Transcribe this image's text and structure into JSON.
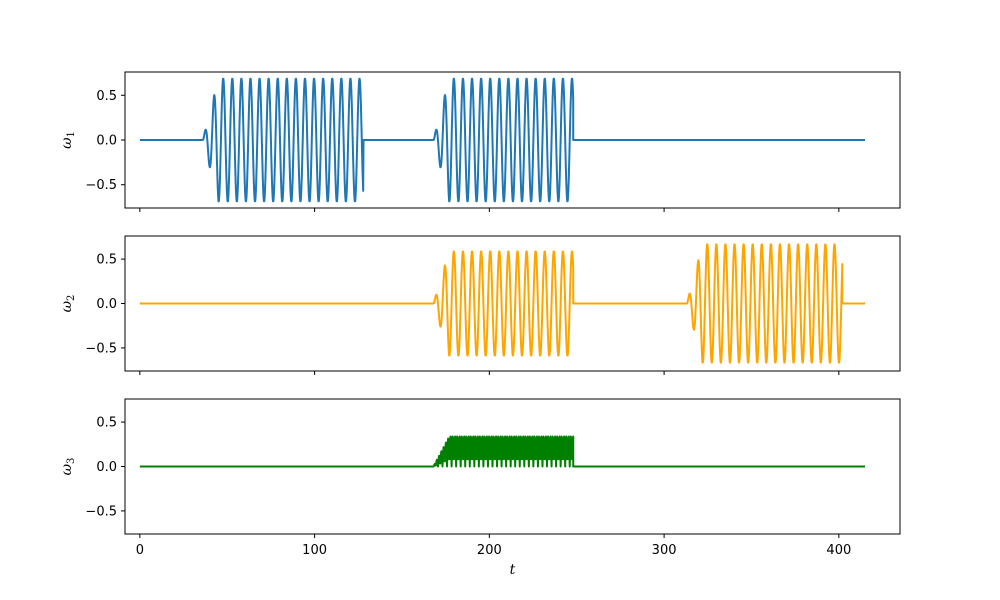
{
  "chart_data": [
    {
      "type": "line",
      "ylabel": "ω",
      "ylabel_sub": "1",
      "color": "#1f77b4",
      "xlim": [
        -8.5,
        435
      ],
      "ylim": [
        -0.76,
        0.76
      ],
      "yticks": [
        0.5,
        0.0,
        -0.5
      ],
      "ytick_labels": [
        "0.5",
        "0.0",
        "−0.5"
      ],
      "show_xtick_labels": false,
      "segments": [
        {
          "t_start": 0,
          "t_end": 36,
          "kind": "flat"
        },
        {
          "t_start": 36,
          "t_end": 128,
          "kind": "oscillation",
          "amplitude": 0.69,
          "period": 5.2,
          "ramp": 9
        },
        {
          "t_start": 128,
          "t_end": 168,
          "kind": "flat"
        },
        {
          "t_start": 168,
          "t_end": 248,
          "kind": "oscillation",
          "amplitude": 0.69,
          "period": 5.2,
          "ramp": 9
        },
        {
          "t_start": 248,
          "t_end": 415,
          "kind": "flat"
        }
      ]
    },
    {
      "type": "line",
      "ylabel": "ω",
      "ylabel_sub": "2",
      "color": "#ffa500",
      "xlim": [
        -8.5,
        435
      ],
      "ylim": [
        -0.76,
        0.76
      ],
      "yticks": [
        0.5,
        0.0,
        -0.5
      ],
      "ytick_labels": [
        "0.5",
        "0.0",
        "−0.5"
      ],
      "show_xtick_labels": false,
      "segments": [
        {
          "t_start": 0,
          "t_end": 168,
          "kind": "flat"
        },
        {
          "t_start": 168,
          "t_end": 248,
          "kind": "oscillation",
          "amplitude": 0.59,
          "period": 5.2,
          "ramp": 9
        },
        {
          "t_start": 248,
          "t_end": 313,
          "kind": "flat"
        },
        {
          "t_start": 313,
          "t_end": 402,
          "kind": "oscillation",
          "amplitude": 0.67,
          "period": 5.2,
          "ramp": 9
        },
        {
          "t_start": 402,
          "t_end": 415,
          "kind": "flat"
        }
      ]
    },
    {
      "type": "line",
      "ylabel": "ω",
      "ylabel_sub": "3",
      "color": "#008000",
      "xlim": [
        -8.5,
        435
      ],
      "ylim": [
        -0.76,
        0.76
      ],
      "yticks": [
        0.5,
        0.0,
        -0.5
      ],
      "ytick_labels": [
        "0.5",
        "0.0",
        "−0.5"
      ],
      "show_xtick_labels": true,
      "xlabel": "t",
      "xticks": [
        0,
        100,
        200,
        300,
        400
      ],
      "xtick_labels": [
        "0",
        "100",
        "200",
        "300",
        "400"
      ],
      "segments": [
        {
          "t_start": 0,
          "t_end": 168,
          "kind": "flat"
        },
        {
          "t_start": 168,
          "t_end": 248,
          "kind": "positive-oscillation",
          "amplitude": 0.34,
          "period": 2.6,
          "ramp": 9
        },
        {
          "t_start": 248,
          "t_end": 415,
          "kind": "flat"
        }
      ]
    }
  ]
}
